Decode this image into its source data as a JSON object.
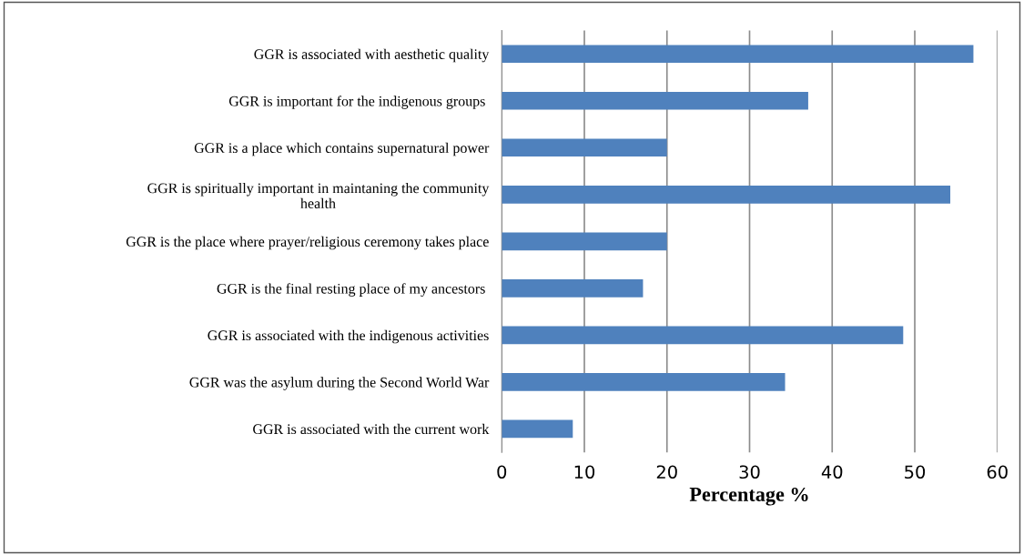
{
  "chart_data": {
    "type": "bar",
    "orientation": "horizontal",
    "categories": [
      "GGR is associated with aesthetic quality",
      "GGR is important for the indigenous groups ",
      "GGR is a place which contains supernatural power",
      "GGR is spiritually important in maintaning the community\nhealth",
      "GGR is the place where prayer/religious ceremony takes place",
      "GGR is the final resting place of my ancestors ",
      "GGR is associated with the indigenous activities",
      "GGR was the asylum during the Second World War",
      "GGR is associated with the current work"
    ],
    "values": [
      57.1,
      37.1,
      20.0,
      54.3,
      20.0,
      17.1,
      48.6,
      34.3,
      8.6
    ],
    "color": "#4f81bd",
    "xlabel": "Percentage %",
    "xlim": [
      0,
      60
    ],
    "xticks": [
      0,
      10,
      20,
      30,
      40,
      50,
      60
    ],
    "grid": "x",
    "legend": false
  }
}
